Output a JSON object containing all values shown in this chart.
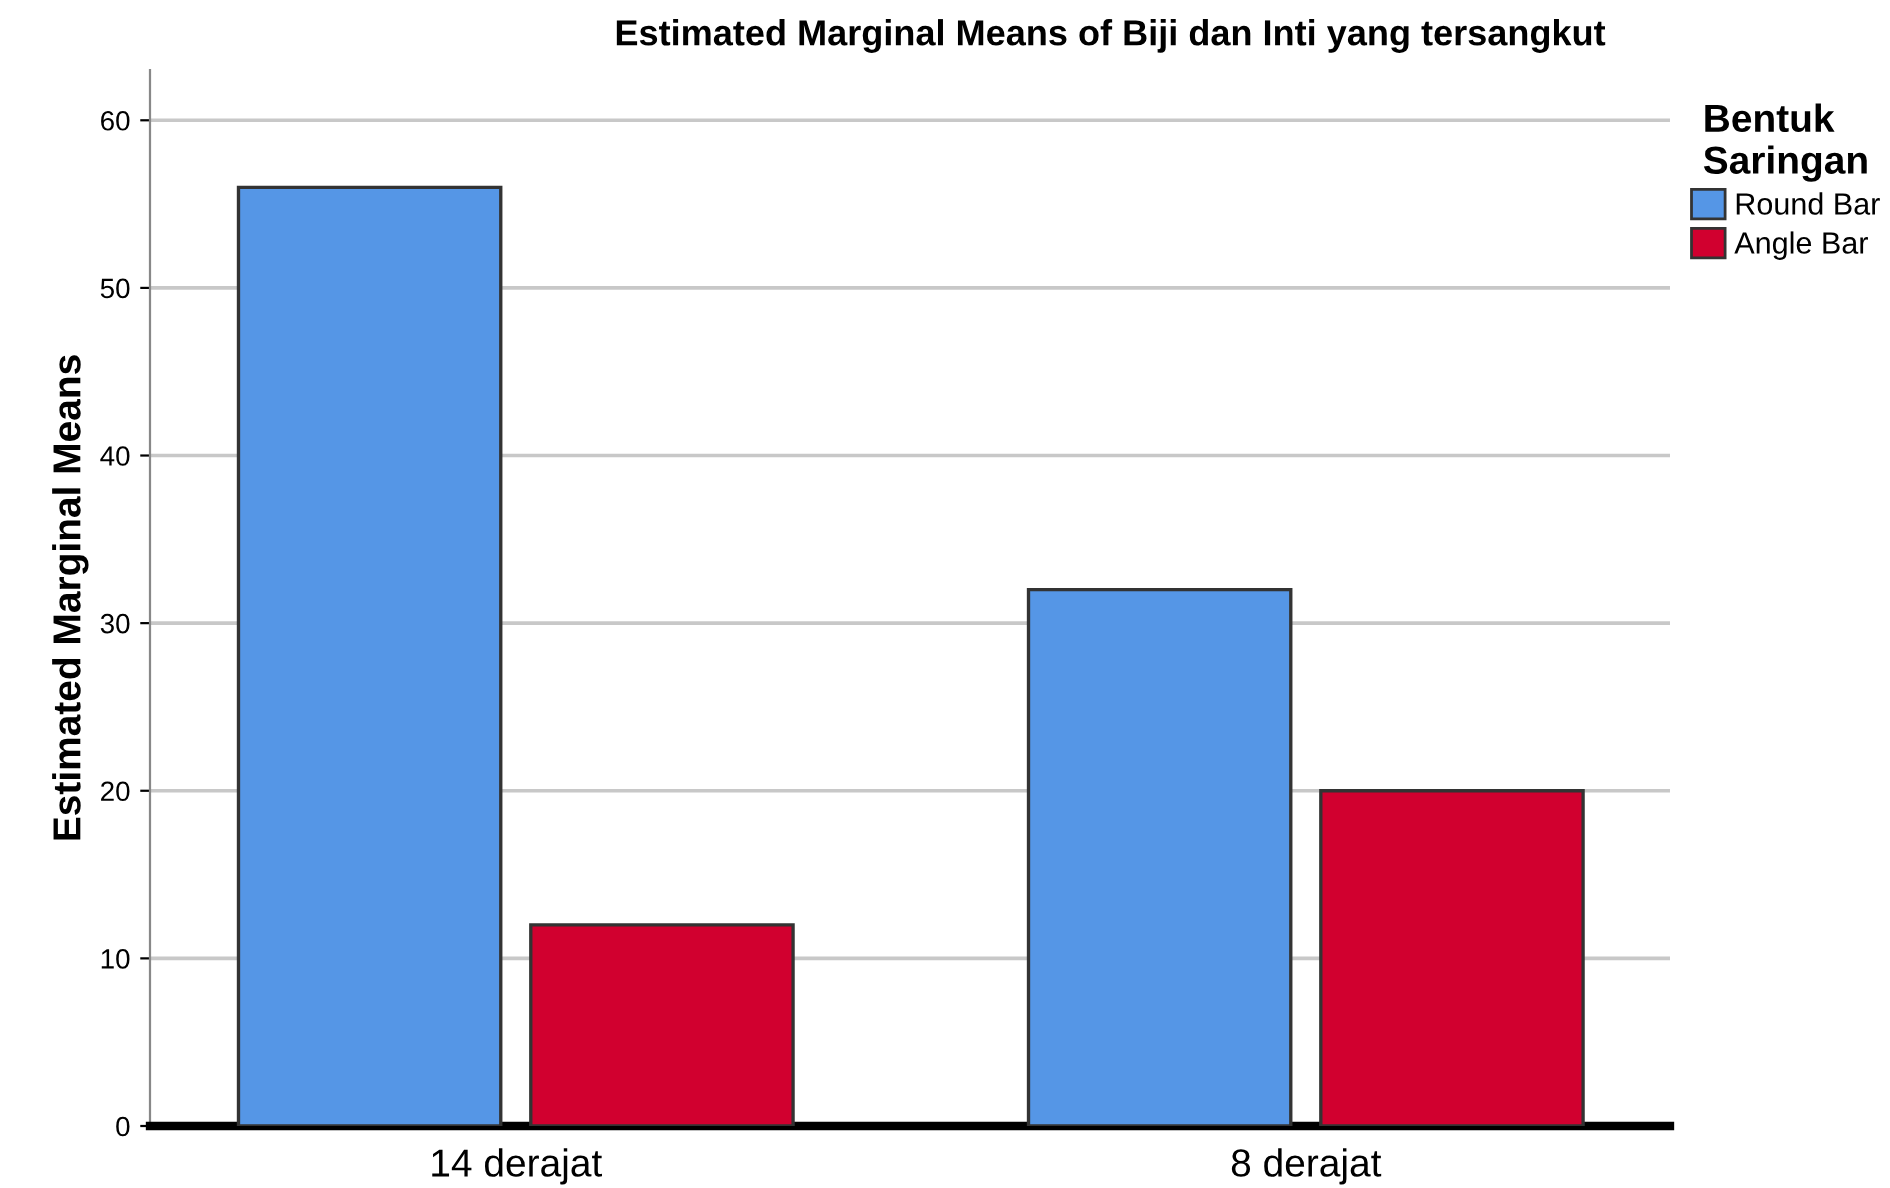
{
  "chart_data": {
    "type": "bar",
    "title": "Estimated Marginal Means of Biji dan Inti yang tersangkut",
    "ylabel": "Estimated Marginal Means",
    "legend_title": "Bentuk\nSaringan",
    "categories": [
      "14 derajat",
      "8 derajat"
    ],
    "series": [
      {
        "name": "Round Bar",
        "color": "#5596e6",
        "values": [
          56,
          32
        ]
      },
      {
        "name": "Angle Bar",
        "color": "#d1002f",
        "values": [
          12,
          20
        ]
      }
    ],
    "ylim": [
      0,
      63
    ],
    "yticks": [
      0,
      10,
      20,
      30,
      40,
      50,
      60
    ],
    "grid": "y",
    "legend": "top right"
  }
}
